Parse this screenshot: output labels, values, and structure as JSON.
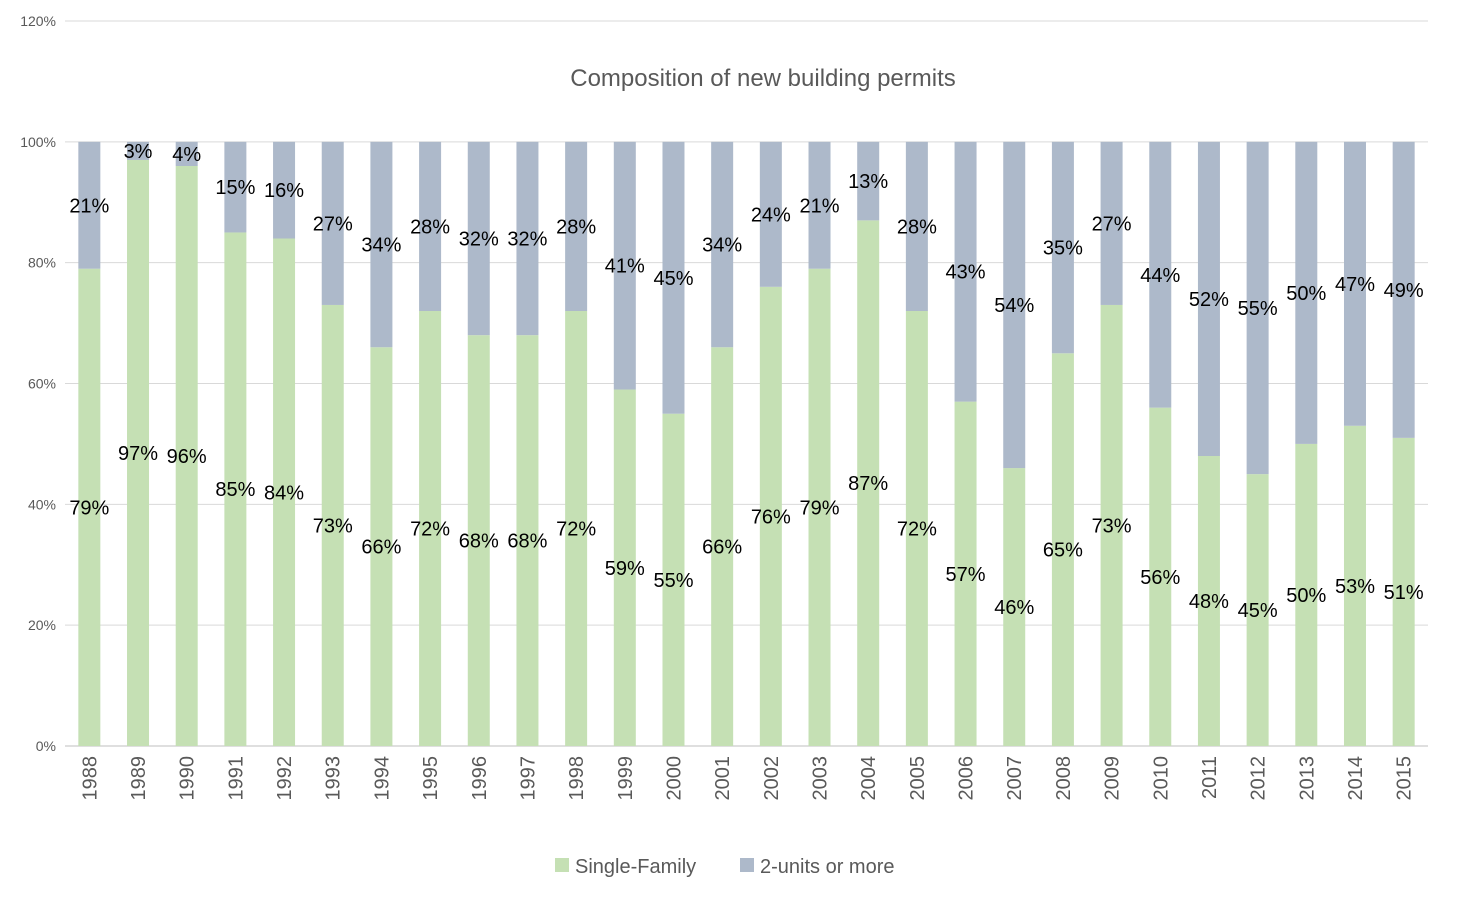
{
  "chart_data": {
    "type": "bar",
    "stacked": true,
    "percent_stacked": true,
    "title": "Composition of new building permits",
    "xlabel": "",
    "ylabel": "",
    "ylim": [
      0,
      120
    ],
    "y_ticks": [
      "0%",
      "20%",
      "40%",
      "60%",
      "80%",
      "100%",
      "120%"
    ],
    "grid": true,
    "legend_position": "bottom",
    "categories": [
      "1988",
      "1989",
      "1990",
      "1991",
      "1992",
      "1993",
      "1994",
      "1995",
      "1996",
      "1997",
      "1998",
      "1999",
      "2000",
      "2001",
      "2002",
      "2003",
      "2004",
      "2005",
      "2006",
      "2007",
      "2008",
      "2009",
      "2010",
      "2011",
      "2012",
      "2013",
      "2014",
      "2015"
    ],
    "series": [
      {
        "name": "Single-Family",
        "color": "#c5e0b4",
        "values": [
          79,
          97,
          96,
          85,
          84,
          73,
          66,
          72,
          68,
          68,
          72,
          59,
          55,
          66,
          76,
          79,
          87,
          72,
          57,
          46,
          65,
          73,
          56,
          48,
          45,
          50,
          53,
          51
        ]
      },
      {
        "name": "2-units or more",
        "color": "#adb9ca",
        "values": [
          21,
          3,
          4,
          15,
          16,
          27,
          34,
          28,
          32,
          32,
          28,
          41,
          45,
          34,
          24,
          21,
          13,
          28,
          43,
          54,
          35,
          27,
          44,
          52,
          55,
          50,
          47,
          49
        ]
      }
    ]
  }
}
